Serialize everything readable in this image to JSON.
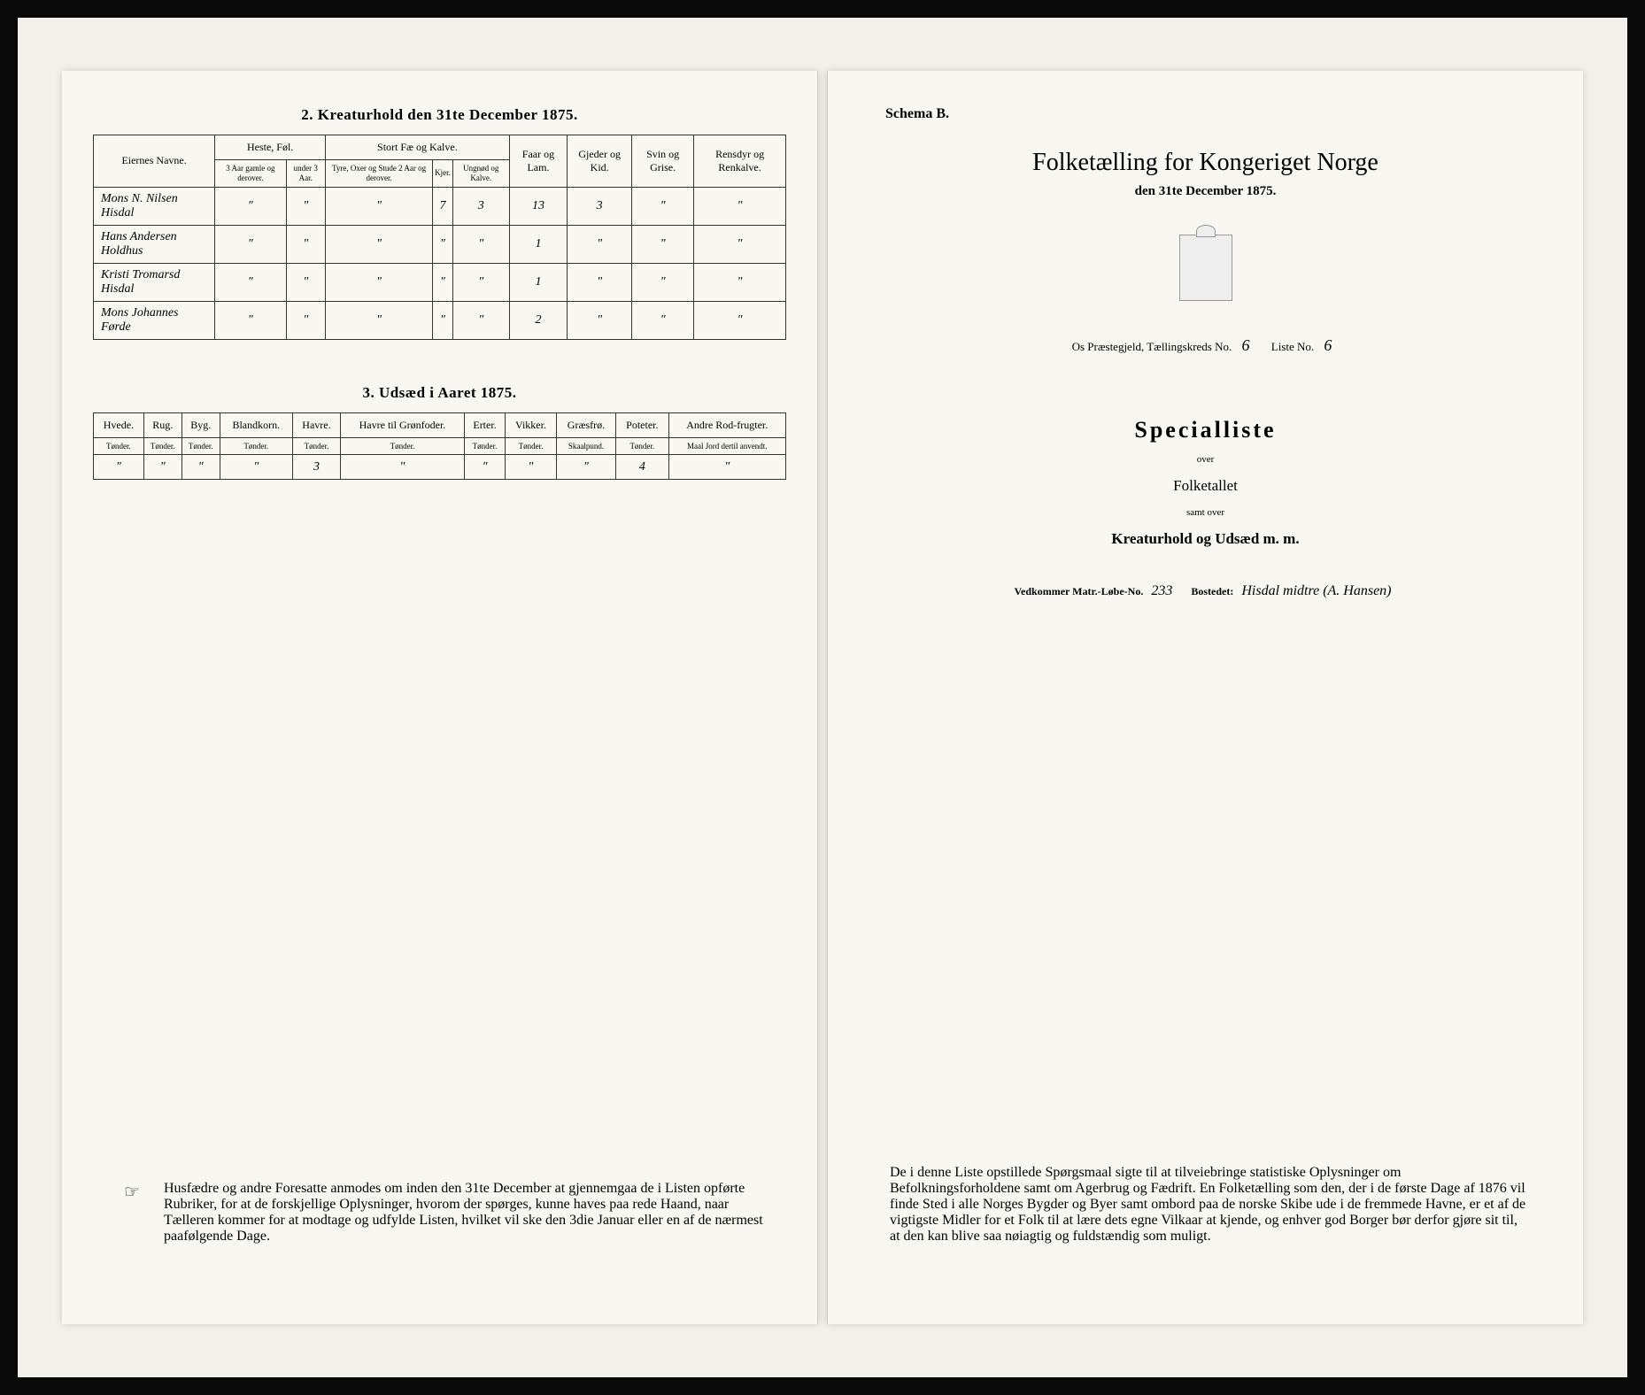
{
  "left_page": {
    "section2": {
      "title": "2.  Kreaturhold den 31te December 1875.",
      "headers": {
        "name": "Eiernes Navne.",
        "heste": "Heste, Føl.",
        "heste_sub": [
          "3 Aar gamle og derover.",
          "under 3 Aar."
        ],
        "storfae": "Stort Fæ og Kalve.",
        "storfae_sub": [
          "Tyre, Oxer og Stude 2 Aar og derover.",
          "Kjer.",
          "Ungnød og Kalve."
        ],
        "faar": "Faar og Lam.",
        "gjeder": "Gjeder og Kid.",
        "svin": "Svin og Grise.",
        "rensdyr": "Rensdyr og Renkalve."
      },
      "rows": [
        {
          "name": "Mons N. Nilsen Hisdal",
          "cells": [
            "\"",
            "\"",
            "\"",
            "7",
            "3",
            "13",
            "3",
            "\"",
            "\""
          ]
        },
        {
          "name": "Hans Andersen Holdhus",
          "cells": [
            "\"",
            "\"",
            "\"",
            "\"",
            "\"",
            "1",
            "\"",
            "\"",
            "\""
          ]
        },
        {
          "name": "Kristi Tromarsd Hisdal",
          "cells": [
            "\"",
            "\"",
            "\"",
            "\"",
            "\"",
            "1",
            "\"",
            "\"",
            "\""
          ]
        },
        {
          "name": "Mons Johannes Førde",
          "cells": [
            "\"",
            "\"",
            "\"",
            "\"",
            "\"",
            "2",
            "\"",
            "\"",
            "\""
          ]
        }
      ]
    },
    "section3": {
      "title": "3.  Udsæd i Aaret 1875.",
      "headers": [
        "Hvede.",
        "Rug.",
        "Byg.",
        "Blandkorn.",
        "Havre.",
        "Havre til Grønfoder.",
        "Erter.",
        "Vikker.",
        "Græsfrø.",
        "Poteter.",
        "Andre Rod-frugter."
      ],
      "sub": [
        "Tønder.",
        "Tønder.",
        "Tønder.",
        "Tønder.",
        "Tønder.",
        "Tønder.",
        "Tønder.",
        "Tønder.",
        "Skaalpund.",
        "Tønder.",
        "Maal Jord dertil anvendt."
      ],
      "row": [
        "\"",
        "\"",
        "\"",
        "\"",
        "3",
        "\"",
        "\"",
        "\"",
        "\"",
        "4",
        "\""
      ]
    },
    "footer_note": "Husfædre og andre Foresatte anmodes om inden den 31te December at gjennemgaa de i Listen opførte Rubriker, for at de forskjellige Oplysninger, hvorom der spørges, kunne haves paa rede Haand, naar Tælleren kommer for at modtage og udfylde Listen, hvilket vil ske den 3die Januar eller en af de nærmest paafølgende Dage."
  },
  "right_page": {
    "schema": "Schema B.",
    "main_title": "Folketælling for Kongeriget Norge",
    "subtitle": "den 31te December 1875.",
    "district_prefix": "Os Præstegjeld, Tællingskreds No.",
    "district_no": "6",
    "liste_label": "Liste No.",
    "liste_no": "6",
    "special_title": "Specialliste",
    "over": "over",
    "folketallet": "Folketallet",
    "samt_over": "samt over",
    "kreatur_line": "Kreaturhold og Udsæd m. m.",
    "vedkommer_label": "Vedkommer Matr.-Løbe-No.",
    "matr_no": "233",
    "bostedet_label": "Bostedet:",
    "bostedet": "Hisdal midtre (A. Hansen)",
    "footer_note": "De i denne Liste opstillede Spørgsmaal sigte til at tilveiebringe statistiske Oplysninger om Befolkningsforholdene samt om Agerbrug og Fædrift. En Folketælling som den, der i de første Dage af 1876 vil finde Sted i alle Norges Bygder og Byer samt ombord paa de norske Skibe ude i de fremmede Havne, er et af de vigtigste Midler for et Folk til at lære dets egne Vilkaar at kjende, og enhver god Borger bør derfor gjøre sit til, at den kan blive saa nøiagtig og fuldstændig som muligt."
  }
}
